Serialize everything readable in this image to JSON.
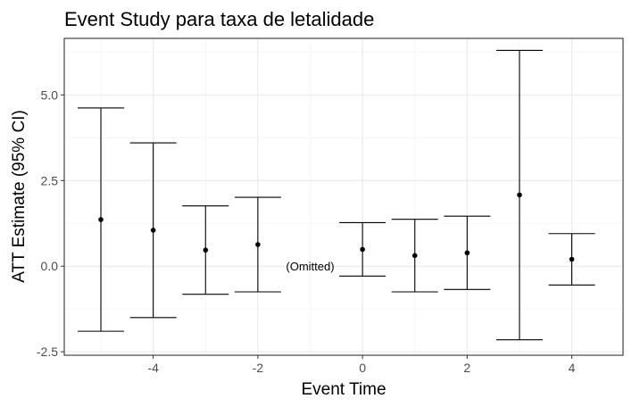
{
  "chart_data": {
    "type": "scatter",
    "title": "Event Study para taxa de letalidade",
    "xlabel": "Event Time",
    "ylabel": "ATT Estimate (95% CI)",
    "xlim": [
      -5.7,
      4.98
    ],
    "ylim": [
      -2.6,
      6.65
    ],
    "x_ticks": [
      -4,
      -2,
      0,
      2,
      4
    ],
    "x_tick_labels": [
      "-4",
      "-2",
      "0",
      "2",
      "4"
    ],
    "y_ticks": [
      -2.5,
      0,
      2.5,
      5
    ],
    "y_tick_labels": [
      "-2.5",
      "0.0",
      "2.5",
      "5.0"
    ],
    "grid": true,
    "legend": "none",
    "series": [
      {
        "points": [
          {
            "x": -5,
            "estimate": 1.36,
            "lower": -1.9,
            "upper": 4.62
          },
          {
            "x": -4,
            "estimate": 1.05,
            "lower": -1.5,
            "upper": 3.6
          },
          {
            "x": -3,
            "estimate": 0.47,
            "lower": -0.82,
            "upper": 1.76
          },
          {
            "x": -2,
            "estimate": 0.63,
            "lower": -0.75,
            "upper": 2.01
          },
          {
            "x": 0,
            "estimate": 0.49,
            "lower": -0.29,
            "upper": 1.27
          },
          {
            "x": 1,
            "estimate": 0.31,
            "lower": -0.75,
            "upper": 1.37
          },
          {
            "x": 2,
            "estimate": 0.39,
            "lower": -0.68,
            "upper": 1.46
          },
          {
            "x": 3,
            "estimate": 2.08,
            "lower": -2.15,
            "upper": 6.3
          },
          {
            "x": 4,
            "estimate": 0.2,
            "lower": -0.55,
            "upper": 0.95
          }
        ]
      }
    ],
    "annotations": [
      {
        "text": "(Omitted)",
        "x": -1,
        "y": 0
      }
    ]
  }
}
